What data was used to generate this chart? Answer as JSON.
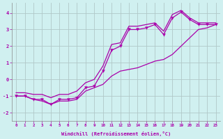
{
  "xlabel": "Windchill (Refroidissement éolien,°C)",
  "bg_color": "#d0f0f0",
  "line_color": "#aa00aa",
  "grid_color": "#b0c8c8",
  "x_data": [
    0,
    1,
    2,
    3,
    4,
    5,
    6,
    7,
    8,
    9,
    10,
    11,
    12,
    13,
    14,
    15,
    16,
    17,
    18,
    19,
    20,
    21,
    22,
    23
  ],
  "y_main": [
    -1.0,
    -1.0,
    -1.2,
    -1.2,
    -1.5,
    -1.2,
    -1.2,
    -1.1,
    -0.5,
    -0.4,
    0.5,
    1.75,
    2.0,
    3.0,
    3.0,
    3.1,
    3.3,
    2.7,
    3.7,
    4.05,
    3.6,
    3.3,
    3.3,
    3.3
  ],
  "y_low": [
    -1.0,
    -1.0,
    -1.2,
    -1.3,
    -1.5,
    -1.3,
    -1.3,
    -1.2,
    -0.7,
    -0.5,
    -0.3,
    0.2,
    0.5,
    0.6,
    0.7,
    0.9,
    1.1,
    1.2,
    1.5,
    2.0,
    2.5,
    3.0,
    3.1,
    3.3
  ],
  "y_high": [
    -0.8,
    -0.8,
    -0.9,
    -0.9,
    -1.1,
    -0.9,
    -0.9,
    -0.7,
    -0.2,
    0.0,
    0.8,
    2.1,
    2.2,
    3.2,
    3.2,
    3.3,
    3.4,
    2.9,
    3.9,
    4.15,
    3.7,
    3.4,
    3.4,
    3.4
  ],
  "xlim": [
    -0.5,
    23.5
  ],
  "ylim": [
    -2.5,
    4.6
  ],
  "yticks": [
    -2,
    -1,
    0,
    1,
    2,
    3,
    4
  ],
  "xticks": [
    0,
    1,
    2,
    3,
    4,
    5,
    6,
    7,
    8,
    9,
    10,
    11,
    12,
    13,
    14,
    15,
    16,
    17,
    18,
    19,
    20,
    21,
    22,
    23
  ]
}
